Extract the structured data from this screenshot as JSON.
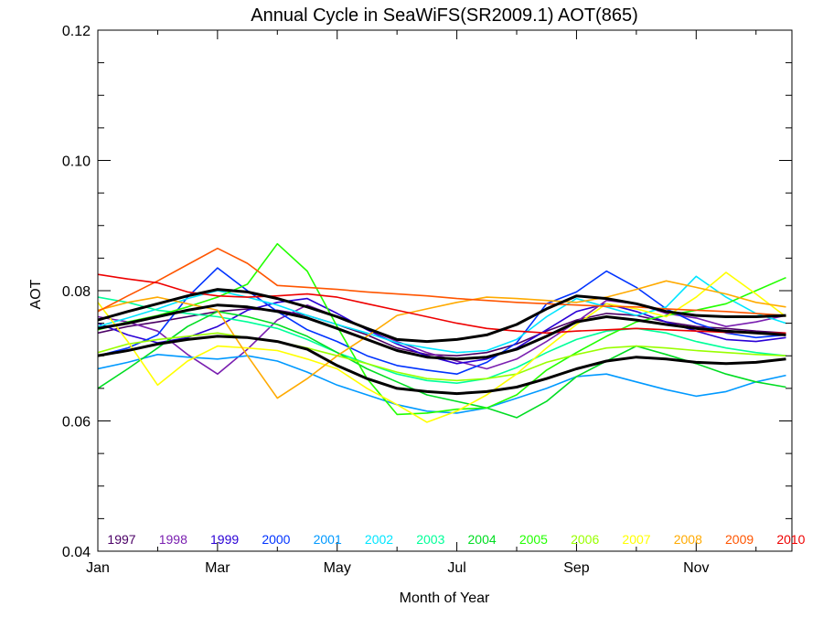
{
  "chart_data": {
    "type": "line",
    "title": "Annual Cycle in SeaWiFS(SR2009.1) AOT(865)",
    "xlabel": "Month of Year",
    "ylabel": "AOT",
    "xlim": [
      1,
      12.6
    ],
    "ylim": [
      0.04,
      0.12
    ],
    "x_ticks": [
      {
        "value": 1,
        "label": "Jan"
      },
      {
        "value": 3,
        "label": "Mar"
      },
      {
        "value": 5,
        "label": "May"
      },
      {
        "value": 7,
        "label": "Jul"
      },
      {
        "value": 9,
        "label": "Sep"
      },
      {
        "value": 11,
        "label": "Nov"
      }
    ],
    "y_ticks": [
      {
        "value": 0.04,
        "label": "0.04"
      },
      {
        "value": 0.06,
        "label": "0.06"
      },
      {
        "value": 0.08,
        "label": "0.08"
      },
      {
        "value": 0.1,
        "label": "0.10"
      },
      {
        "value": 0.12,
        "label": "0.12"
      }
    ],
    "grid": false,
    "legend_position": "bottom",
    "x": [
      1.0,
      1.5,
      2.0,
      2.5,
      3.0,
      3.5,
      4.0,
      4.5,
      5.0,
      5.5,
      6.0,
      6.5,
      7.0,
      7.5,
      8.0,
      8.5,
      9.0,
      9.5,
      10.0,
      10.5,
      11.0,
      11.5,
      12.0,
      12.5
    ],
    "series": [
      {
        "name": "1997",
        "color": "#4b0066",
        "values": [
          0.0735,
          0.0745,
          0.0752,
          0.076,
          0.0768,
          0.0772,
          0.077,
          0.0762,
          0.0748,
          0.0732,
          0.0712,
          0.0702,
          0.07,
          0.0705,
          0.0718,
          0.0738,
          0.0755,
          0.0765,
          0.0762,
          0.0752,
          0.0745,
          0.0742,
          0.0738,
          0.0735
        ]
      },
      {
        "name": "1998",
        "color": "#7a1fb0",
        "values": [
          0.076,
          0.0752,
          0.0738,
          0.0702,
          0.0672,
          0.071,
          0.0755,
          0.0778,
          0.076,
          0.0742,
          0.0722,
          0.0705,
          0.0692,
          0.068,
          0.0695,
          0.0722,
          0.0752,
          0.0785,
          0.078,
          0.0765,
          0.0758,
          0.0745,
          0.0752,
          0.0762
        ]
      },
      {
        "name": "1999",
        "color": "#2a00d6",
        "values": [
          0.075,
          0.0732,
          0.072,
          0.0728,
          0.0745,
          0.077,
          0.0782,
          0.0788,
          0.0765,
          0.074,
          0.0718,
          0.07,
          0.0688,
          0.0695,
          0.0712,
          0.074,
          0.0768,
          0.078,
          0.0768,
          0.0752,
          0.0738,
          0.0725,
          0.0722,
          0.0728
        ]
      },
      {
        "name": "2000",
        "color": "#0033ff",
        "values": [
          0.07,
          0.0712,
          0.0732,
          0.079,
          0.0835,
          0.08,
          0.0768,
          0.074,
          0.0722,
          0.07,
          0.0685,
          0.0678,
          0.0672,
          0.069,
          0.072,
          0.078,
          0.0798,
          0.083,
          0.0805,
          0.0772,
          0.075,
          0.0735,
          0.0728,
          0.0732
        ]
      },
      {
        "name": "2001",
        "color": "#0099ff",
        "values": [
          0.068,
          0.069,
          0.0702,
          0.0698,
          0.0695,
          0.07,
          0.0692,
          0.0675,
          0.0655,
          0.064,
          0.0625,
          0.0615,
          0.0612,
          0.062,
          0.0635,
          0.065,
          0.0668,
          0.0672,
          0.066,
          0.0648,
          0.0638,
          0.0645,
          0.066,
          0.067
        ]
      },
      {
        "name": "2002",
        "color": "#00e5ff",
        "values": [
          0.0745,
          0.0758,
          0.0772,
          0.0788,
          0.08,
          0.079,
          0.0778,
          0.0762,
          0.0748,
          0.0735,
          0.072,
          0.0712,
          0.0705,
          0.0708,
          0.0725,
          0.076,
          0.0788,
          0.0775,
          0.0762,
          0.0775,
          0.0822,
          0.079,
          0.0765,
          0.075
        ]
      },
      {
        "name": "2003",
        "color": "#00ff99",
        "values": [
          0.079,
          0.0782,
          0.077,
          0.0765,
          0.076,
          0.0752,
          0.0742,
          0.0725,
          0.0705,
          0.0688,
          0.0672,
          0.0662,
          0.0658,
          0.0665,
          0.0682,
          0.0705,
          0.0725,
          0.0738,
          0.0742,
          0.0735,
          0.0722,
          0.0712,
          0.0705,
          0.07
        ]
      },
      {
        "name": "2004",
        "color": "#00dd22",
        "values": [
          0.065,
          0.068,
          0.0712,
          0.0745,
          0.0768,
          0.076,
          0.0748,
          0.073,
          0.0705,
          0.068,
          0.066,
          0.064,
          0.063,
          0.062,
          0.0605,
          0.063,
          0.0668,
          0.0692,
          0.0715,
          0.0702,
          0.0688,
          0.0672,
          0.066,
          0.0652
        ]
      },
      {
        "name": "2005",
        "color": "#22ff00",
        "values": [
          0.074,
          0.0752,
          0.0762,
          0.0775,
          0.079,
          0.081,
          0.0872,
          0.083,
          0.0745,
          0.0665,
          0.061,
          0.0612,
          0.0618,
          0.062,
          0.064,
          0.0678,
          0.0705,
          0.073,
          0.0752,
          0.0762,
          0.077,
          0.078,
          0.08,
          0.082
        ]
      },
      {
        "name": "2006",
        "color": "#99ff00",
        "values": [
          0.0705,
          0.0718,
          0.0725,
          0.073,
          0.0735,
          0.0728,
          0.0722,
          0.0712,
          0.07,
          0.0688,
          0.0675,
          0.0665,
          0.0662,
          0.0665,
          0.0672,
          0.069,
          0.0702,
          0.0712,
          0.0715,
          0.0712,
          0.0708,
          0.0705,
          0.0702,
          0.07
        ]
      },
      {
        "name": "2007",
        "color": "#ffff00",
        "values": [
          0.0782,
          0.0722,
          0.0655,
          0.0692,
          0.0715,
          0.0712,
          0.0708,
          0.0695,
          0.068,
          0.065,
          0.0625,
          0.0598,
          0.0615,
          0.064,
          0.0672,
          0.0712,
          0.0748,
          0.078,
          0.0772,
          0.076,
          0.079,
          0.0828,
          0.0795,
          0.076
        ]
      },
      {
        "name": "2008",
        "color": "#ffaa00",
        "values": [
          0.077,
          0.0782,
          0.079,
          0.078,
          0.077,
          0.07,
          0.0635,
          0.0665,
          0.07,
          0.073,
          0.0762,
          0.0772,
          0.0782,
          0.079,
          0.0788,
          0.0785,
          0.0782,
          0.079,
          0.0802,
          0.0815,
          0.0805,
          0.0795,
          0.0782,
          0.0775
        ]
      },
      {
        "name": "2009",
        "color": "#ff5500",
        "values": [
          0.0768,
          0.0792,
          0.0815,
          0.084,
          0.0865,
          0.0842,
          0.0808,
          0.0805,
          0.0802,
          0.0798,
          0.0795,
          0.0792,
          0.0788,
          0.0785,
          0.0782,
          0.078,
          0.0778,
          0.0776,
          0.0775,
          0.0772,
          0.077,
          0.0768,
          0.0765,
          0.0762
        ]
      },
      {
        "name": "2010",
        "color": "#ee0000",
        "values": [
          0.0825,
          0.0818,
          0.0812,
          0.0798,
          0.0792,
          0.079,
          0.0792,
          0.0795,
          0.079,
          0.078,
          0.077,
          0.076,
          0.075,
          0.0742,
          0.0738,
          0.0735,
          0.0738,
          0.074,
          0.0742,
          0.074,
          0.0738,
          0.0736,
          0.0735,
          0.0735
        ]
      },
      {
        "name": "",
        "color": "#000000",
        "values": [
          0.07,
          0.0708,
          0.0718,
          0.0725,
          0.073,
          0.0728,
          0.0722,
          0.071,
          0.0685,
          0.0665,
          0.065,
          0.0645,
          0.0642,
          0.0645,
          0.0652,
          0.0665,
          0.068,
          0.0692,
          0.0698,
          0.0695,
          0.069,
          0.0688,
          0.069,
          0.0695
        ]
      },
      {
        "name": "",
        "color": "#000000",
        "values": [
          0.0742,
          0.075,
          0.076,
          0.077,
          0.0778,
          0.0775,
          0.0768,
          0.0758,
          0.0742,
          0.0725,
          0.0708,
          0.0698,
          0.0695,
          0.0698,
          0.071,
          0.073,
          0.0752,
          0.076,
          0.0755,
          0.0748,
          0.0742,
          0.0738,
          0.0735,
          0.0732
        ]
      },
      {
        "name": "",
        "color": "#000000",
        "values": [
          0.0755,
          0.0768,
          0.078,
          0.0792,
          0.0802,
          0.0798,
          0.0788,
          0.0775,
          0.076,
          0.0742,
          0.0725,
          0.0722,
          0.0725,
          0.0732,
          0.0748,
          0.0772,
          0.0792,
          0.0788,
          0.078,
          0.0768,
          0.0762,
          0.076,
          0.076,
          0.0762
        ]
      }
    ]
  }
}
